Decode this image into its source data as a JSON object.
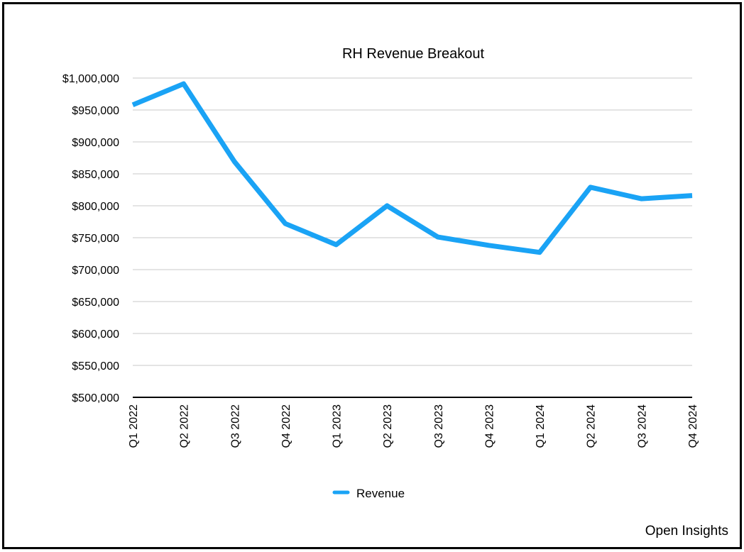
{
  "chart_data": {
    "type": "line",
    "title": "RH Revenue Breakout",
    "xlabel": "",
    "ylabel": "",
    "categories": [
      "Q1 2022",
      "Q2 2022",
      "Q3 2022",
      "Q4 2022",
      "Q1 2023",
      "Q2 2023",
      "Q3 2023",
      "Q4 2023",
      "Q1 2024",
      "Q2 2024",
      "Q3 2024",
      "Q4 2024"
    ],
    "series": [
      {
        "name": "Revenue",
        "color": "#1aa3f5",
        "values": [
          958000,
          991000,
          869000,
          772000,
          739000,
          800000,
          751000,
          738000,
          727000,
          829000,
          811000,
          816000
        ]
      }
    ],
    "ylim": [
      500000,
      1000000
    ],
    "yticks": [
      "$500,000",
      "$550,000",
      "$600,000",
      "$650,000",
      "$700,000",
      "$750,000",
      "$800,000",
      "$850,000",
      "$900,000",
      "$950,000",
      "$1,000,000"
    ],
    "grid": true,
    "legend_position": "bottom-center"
  },
  "footer": {
    "text": "Open Insights"
  }
}
